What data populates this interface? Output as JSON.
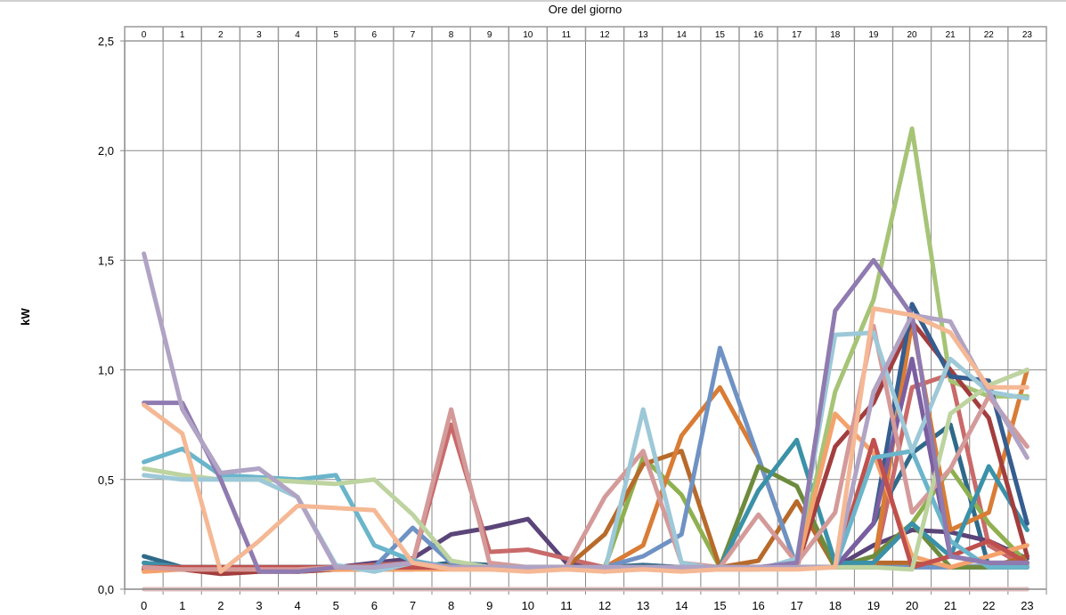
{
  "chart_data": {
    "type": "line",
    "title": "",
    "x2label": "Ore del giorno",
    "xlabel": "",
    "ylabel": "kW",
    "categories": [
      "0",
      "1",
      "2",
      "3",
      "4",
      "5",
      "6",
      "7",
      "8",
      "9",
      "10",
      "11",
      "12",
      "13",
      "14",
      "15",
      "16",
      "17",
      "18",
      "19",
      "20",
      "21",
      "22",
      "23"
    ],
    "ylim": [
      0,
      2.5
    ],
    "yticks": [
      0,
      0.5,
      1.0,
      1.5,
      2.0,
      2.5
    ],
    "ytick_labels": [
      "0,0",
      "0,5",
      "1,0",
      "1,5",
      "2,0",
      "2,5"
    ],
    "grid": true,
    "legend": "none",
    "series": [
      {
        "color": "#dfbdbd",
        "values": [
          0,
          0,
          0,
          0,
          0,
          0,
          0,
          0,
          0,
          0,
          0,
          0,
          0,
          0,
          0,
          0,
          0,
          0,
          0,
          0,
          0,
          0,
          0,
          0
        ]
      },
      {
        "color": "#9cacd4",
        "values": [
          0.1,
          0.09,
          0.09,
          0.09,
          0.1,
          0.1,
          0.1,
          0.11,
          0.11,
          0.1,
          0.1,
          0.1,
          0.1,
          0.11,
          0.1,
          0.1,
          0.1,
          0.1,
          0.1,
          0.11,
          0.11,
          0.1,
          0.11,
          0.11
        ]
      },
      {
        "color": "#2f6a8a",
        "values": [
          0.15,
          0.1,
          0.09,
          0.09,
          0.08,
          0.09,
          0.1,
          0.1,
          0.12,
          0.11,
          0.1,
          0.1,
          0.1,
          0.11,
          0.1,
          0.1,
          0.1,
          0.1,
          0.1,
          0.3,
          0.62,
          0.75,
          0.1,
          0.1
        ]
      },
      {
        "color": "#5a4478",
        "values": [
          0.12,
          0.1,
          0.1,
          0.1,
          0.1,
          0.1,
          0.12,
          0.14,
          0.25,
          0.28,
          0.32,
          0.12,
          0.1,
          0.1,
          0.1,
          0.1,
          0.1,
          0.1,
          0.1,
          0.2,
          0.27,
          0.26,
          0.22,
          0.14
        ]
      },
      {
        "color": "#c96a6a",
        "values": [
          0.1,
          0.1,
          0.09,
          0.09,
          0.1,
          0.1,
          0.11,
          0.12,
          0.75,
          0.17,
          0.18,
          0.14,
          0.1,
          0.1,
          0.1,
          0.1,
          0.1,
          0.1,
          0.1,
          0.1,
          0.92,
          0.98,
          0.2,
          0.1
        ]
      },
      {
        "color": "#8fb04f",
        "values": [
          0.1,
          0.1,
          0.1,
          0.09,
          0.08,
          0.09,
          0.1,
          0.1,
          0.1,
          0.1,
          0.1,
          0.1,
          0.1,
          0.6,
          0.43,
          0.1,
          0.1,
          0.1,
          0.1,
          0.15,
          0.3,
          0.55,
          0.3,
          0.12
        ]
      },
      {
        "color": "#b86a2a",
        "values": [
          0.09,
          0.09,
          0.09,
          0.09,
          0.09,
          0.09,
          0.09,
          0.09,
          0.11,
          0.1,
          0.1,
          0.1,
          0.25,
          0.57,
          0.63,
          0.1,
          0.13,
          0.4,
          0.1,
          0.12,
          0.12,
          0.1,
          0.1,
          0.15
        ]
      },
      {
        "color": "#d97c35",
        "values": [
          0.09,
          0.09,
          0.08,
          0.08,
          0.09,
          0.09,
          0.09,
          0.1,
          0.1,
          0.1,
          0.1,
          0.1,
          0.1,
          0.2,
          0.7,
          0.92,
          0.6,
          0.1,
          0.1,
          0.1,
          1.22,
          0.27,
          0.35,
          1.0
        ]
      },
      {
        "color": "#6f92c4",
        "values": [
          0.1,
          0.09,
          0.09,
          0.09,
          0.09,
          0.1,
          0.1,
          0.28,
          0.12,
          0.1,
          0.1,
          0.1,
          0.1,
          0.15,
          0.25,
          1.1,
          0.6,
          0.1,
          0.1,
          0.1,
          0.1,
          0.1,
          0.1,
          0.1
        ]
      },
      {
        "color": "#6e8b3d",
        "values": [
          0.1,
          0.1,
          0.1,
          0.1,
          0.1,
          0.1,
          0.1,
          0.1,
          0.1,
          0.1,
          0.1,
          0.1,
          0.1,
          0.1,
          0.1,
          0.1,
          0.56,
          0.47,
          0.1,
          0.15,
          0.3,
          0.1,
          0.1,
          0.1
        ]
      },
      {
        "color": "#3a91a8",
        "values": [
          0.12,
          0.1,
          0.1,
          0.1,
          0.1,
          0.1,
          0.1,
          0.1,
          0.1,
          0.1,
          0.1,
          0.1,
          0.1,
          0.1,
          0.1,
          0.1,
          0.45,
          0.68,
          0.12,
          0.12,
          0.3,
          0.15,
          0.56,
          0.27
        ]
      },
      {
        "color": "#a6c476",
        "values": [
          0.1,
          0.1,
          0.1,
          0.1,
          0.1,
          0.1,
          0.1,
          0.1,
          0.1,
          0.1,
          0.1,
          0.1,
          0.1,
          0.1,
          0.1,
          0.1,
          0.1,
          0.1,
          0.9,
          1.32,
          2.1,
          0.95,
          0.88,
          0.88
        ]
      },
      {
        "color": "#a33e3e",
        "values": [
          0.09,
          0.09,
          0.07,
          0.08,
          0.08,
          0.09,
          0.1,
          0.1,
          0.1,
          0.1,
          0.1,
          0.1,
          0.1,
          0.1,
          0.1,
          0.1,
          0.1,
          0.1,
          0.65,
          0.85,
          1.22,
          1.0,
          0.78,
          0.15
        ]
      },
      {
        "color": "#355d8f",
        "values": [
          0.1,
          0.1,
          0.1,
          0.1,
          0.1,
          0.1,
          0.1,
          0.1,
          0.1,
          0.1,
          0.1,
          0.1,
          0.1,
          0.1,
          0.1,
          0.1,
          0.1,
          0.1,
          0.1,
          0.3,
          1.3,
          0.97,
          0.95,
          0.3
        ]
      },
      {
        "color": "#f4a26c",
        "values": [
          0.08,
          0.09,
          0.09,
          0.09,
          0.09,
          0.09,
          0.09,
          0.09,
          0.09,
          0.09,
          0.09,
          0.09,
          0.09,
          0.09,
          0.09,
          0.09,
          0.09,
          0.1,
          0.8,
          0.62,
          0.15,
          0.1,
          0.15,
          0.2
        ]
      },
      {
        "color": "#7b5ea0",
        "values": [
          0.1,
          0.1,
          0.1,
          0.1,
          0.1,
          0.1,
          0.1,
          0.1,
          0.1,
          0.1,
          0.1,
          0.1,
          0.1,
          0.1,
          0.1,
          0.1,
          0.1,
          0.1,
          0.1,
          0.3,
          1.05,
          0.15,
          0.12,
          0.12
        ]
      },
      {
        "color": "#c0504d",
        "values": [
          0.1,
          0.1,
          0.1,
          0.1,
          0.1,
          0.1,
          0.1,
          0.1,
          0.1,
          0.1,
          0.1,
          0.1,
          0.1,
          0.1,
          0.1,
          0.1,
          0.1,
          0.1,
          0.1,
          0.68,
          0.1,
          0.15,
          0.22,
          0.12
        ]
      },
      {
        "color": "#d49a9a",
        "values": [
          0.1,
          0.09,
          0.09,
          0.09,
          0.09,
          0.1,
          0.1,
          0.12,
          0.82,
          0.12,
          0.1,
          0.1,
          0.42,
          0.63,
          0.12,
          0.1,
          0.34,
          0.12,
          0.35,
          1.2,
          0.35,
          0.55,
          0.88,
          0.65
        ]
      },
      {
        "color": "#6ab5cb",
        "values": [
          0.58,
          0.64,
          0.52,
          0.51,
          0.5,
          0.52,
          0.2,
          0.13,
          0.1,
          0.1,
          0.1,
          0.1,
          0.1,
          0.1,
          0.1,
          0.1,
          0.1,
          0.1,
          0.1,
          0.6,
          0.63,
          0.22,
          0.1,
          0.1
        ]
      },
      {
        "color": "#bdd3a0",
        "values": [
          0.55,
          0.52,
          0.5,
          0.5,
          0.49,
          0.48,
          0.5,
          0.34,
          0.13,
          0.1,
          0.1,
          0.1,
          0.1,
          0.1,
          0.1,
          0.1,
          0.1,
          0.1,
          0.1,
          0.1,
          0.09,
          0.8,
          0.93,
          1.0
        ]
      },
      {
        "color": "#9dc8d8",
        "values": [
          0.52,
          0.5,
          0.5,
          0.5,
          0.42,
          0.11,
          0.08,
          0.12,
          0.1,
          0.1,
          0.1,
          0.1,
          0.08,
          0.82,
          0.12,
          0.09,
          0.09,
          0.14,
          1.16,
          1.17,
          0.63,
          1.05,
          0.9,
          0.87
        ]
      },
      {
        "color": "#8f7bb0",
        "values": [
          0.85,
          0.85,
          0.5,
          0.08,
          0.08,
          0.1,
          0.1,
          0.12,
          0.1,
          0.1,
          0.1,
          0.1,
          0.1,
          0.1,
          0.1,
          0.1,
          0.1,
          0.12,
          1.27,
          1.5,
          1.25,
          0.15,
          0.12,
          0.12
        ]
      },
      {
        "color": "#b0a3c4",
        "values": [
          1.53,
          0.82,
          0.53,
          0.55,
          0.42,
          0.1,
          0.1,
          0.12,
          0.1,
          0.1,
          0.1,
          0.1,
          0.1,
          0.1,
          0.1,
          0.1,
          0.1,
          0.1,
          0.1,
          0.9,
          1.25,
          1.22,
          0.9,
          0.6
        ]
      },
      {
        "color": "#f5b895",
        "values": [
          0.84,
          0.71,
          0.08,
          0.22,
          0.38,
          0.37,
          0.36,
          0.12,
          0.09,
          0.09,
          0.08,
          0.09,
          0.08,
          0.09,
          0.08,
          0.09,
          0.09,
          0.09,
          0.1,
          1.28,
          1.25,
          1.17,
          0.92,
          0.92
        ]
      }
    ]
  }
}
